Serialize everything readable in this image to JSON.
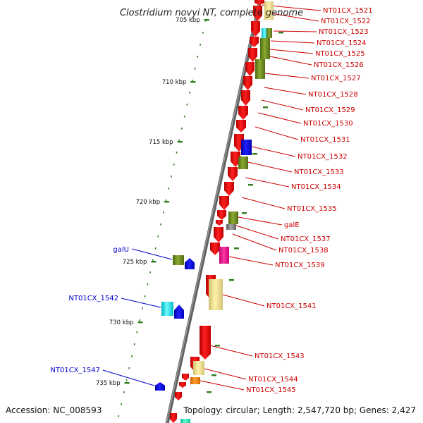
{
  "title": "Clostridium novyi NT, complete genome",
  "footer": {
    "accession": "Accession: NC_008593",
    "topology": "Topology: circular; Length: 2,547,720 bp; Genes: 2,427"
  },
  "colors": {
    "backbone": "#777777",
    "forward_label": "#cc0000",
    "reverse_label": "#0000cc",
    "tick": "#2e7d1e",
    "red": "#ff1010",
    "olive": "#6b8e23",
    "yellow": "#f0e68c",
    "cyan": "#00e5ee",
    "blue": "#0000ff",
    "magenta": "#ff1493",
    "gray": "#888888",
    "orange": "#ff8c00",
    "teal": "#20e8b0"
  },
  "scale": {
    "labels": [
      "705 kbp",
      "710 kbp",
      "715 kbp",
      "720 kbp",
      "725 kbp",
      "730 kbp",
      "735 kbp"
    ],
    "positions_kbp": [
      705,
      710,
      715,
      720,
      725,
      730,
      735
    ]
  },
  "forward_labels": [
    "NT01CX_1521",
    "NT01CX_1522",
    "NT01CX_1523",
    "NT01CX_1524",
    "NT01CX_1525",
    "NT01CX_1526",
    "NT01CX_1527",
    "NT01CX_1528",
    "NT01CX_1529",
    "NT01CX_1530",
    "NT01CX_1531",
    "NT01CX_1532",
    "NT01CX_1533",
    "NT01CX_1534",
    "NT01CX_1535",
    "galE",
    "NT01CX_1537",
    "NT01CX_1538",
    "NT01CX_1539",
    "NT01CX_1541",
    "NT01CX_1543",
    "NT01CX_1544",
    "NT01CX_1545"
  ],
  "reverse_labels": [
    "galU",
    "NT01CX_1542",
    "NT01CX_1547"
  ]
}
